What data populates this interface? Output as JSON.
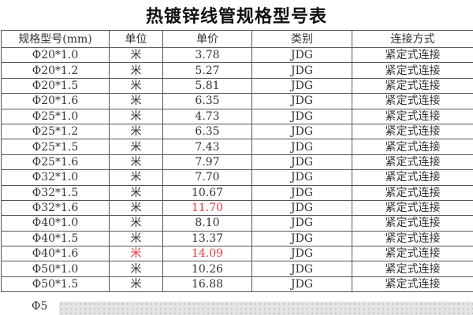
{
  "title": "热镀锌线管规格型号表",
  "columns": [
    "规格型号(mm)",
    "单位",
    "单价",
    "类别",
    "连接方式"
  ],
  "rows": [
    {
      "spec": "Φ20*1.0",
      "unit": "米",
      "price": "3.78",
      "type": "JDG",
      "conn": "紧定式连接"
    },
    {
      "spec": "Φ20*1.2",
      "unit": "米",
      "price": "5.27",
      "type": "JDG",
      "conn": "紧定式连接"
    },
    {
      "spec": "Φ20*1.5",
      "unit": "米",
      "price": "5.81",
      "type": "JDG",
      "conn": "紧定式连接"
    },
    {
      "spec": "Φ20*1.6",
      "unit": "米",
      "price": "6.35",
      "type": "JDG",
      "conn": "紧定式连接"
    },
    {
      "spec": "Φ25*1.0",
      "unit": "米",
      "price": "4.73",
      "type": "JDG",
      "conn": "紧定式连接"
    },
    {
      "spec": "Φ25*1.2",
      "unit": "米",
      "price": "6.35",
      "type": "JDG",
      "conn": "紧定式连接"
    },
    {
      "spec": "Φ25*1.5",
      "unit": "米",
      "price": "7.43",
      "type": "JDG",
      "conn": "紧定式连接"
    },
    {
      "spec": "Φ25*1.6",
      "unit": "米",
      "price": "7.97",
      "type": "JDG",
      "conn": "紧定式连接"
    },
    {
      "spec": "Φ32*1.0",
      "unit": "米",
      "price": "7.70",
      "type": "JDG",
      "conn": "紧定式连接"
    },
    {
      "spec": "Φ32*1.5",
      "unit": "米",
      "price": "10.67",
      "type": "JDG",
      "conn": "紧定式连接"
    },
    {
      "spec": "Φ32*1.6",
      "unit": "米",
      "price": "11.70",
      "type": "JDG",
      "conn": "紧定式连接",
      "price_red": true
    },
    {
      "spec": "Φ40*1.0",
      "unit": "米",
      "price": "8.10",
      "type": "JDG",
      "conn": "紧定式连接"
    },
    {
      "spec": "Φ40*1.5",
      "unit": "米",
      "price": "13.37",
      "type": "JDG",
      "conn": "紧定式连接"
    },
    {
      "spec": "Φ40*1.6",
      "unit": "米",
      "price": "14.09",
      "type": "JDG",
      "conn": "紧定式连接",
      "price_red": true,
      "unit_red": true
    },
    {
      "spec": "Φ50*1.0",
      "unit": "米",
      "price": "10.26",
      "type": "JDG",
      "conn": "紧定式连接"
    },
    {
      "spec": "Φ50*1.5",
      "unit": "米",
      "price": "16.88",
      "type": "JDG",
      "conn": "紧定式连接"
    }
  ],
  "partial_row": "Φ5",
  "colors": {
    "highlight": "#e03a3a"
  }
}
